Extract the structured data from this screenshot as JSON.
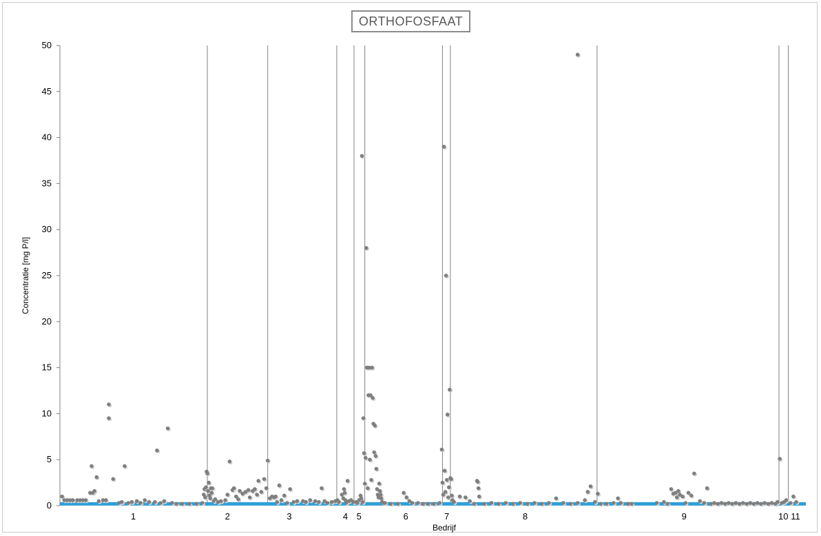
{
  "chart_data": {
    "type": "scatter",
    "title": "ORTHOFOSFAAT",
    "xlabel": "Bedrijf",
    "ylabel": "Concentratie [mg P/l]",
    "ylim": [
      0,
      50
    ],
    "yticks": [
      0,
      5,
      10,
      15,
      20,
      25,
      30,
      35,
      40,
      45,
      50
    ],
    "xlim": [
      0,
      1000
    ],
    "grid": "vertical separators between companies",
    "legend": "none",
    "colors": {
      "points": "#7f7f7f",
      "reference_line": "#2e9fd8",
      "separators": "#808080",
      "frame": "#c9c9c9"
    },
    "reference_line": {
      "y": 0.2
    },
    "separators": [
      205,
      289,
      385,
      409,
      424,
      532,
      543,
      747,
      1000,
      1013
    ],
    "categories": [
      {
        "label": "1",
        "x": 102
      },
      {
        "label": "2",
        "x": 233
      },
      {
        "label": "3",
        "x": 319
      },
      {
        "label": "4",
        "x": 397
      },
      {
        "label": "5",
        "x": 416
      },
      {
        "label": "6",
        "x": 481
      },
      {
        "label": "7",
        "x": 538
      },
      {
        "label": "8",
        "x": 647
      },
      {
        "label": "9",
        "x": 868
      },
      {
        "label": "10",
        "x": 1006
      },
      {
        "label": "11",
        "x": 1023
      }
    ],
    "series": [
      {
        "points": [
          [
            3,
            1
          ],
          [
            6,
            0.6
          ],
          [
            10,
            0.6
          ],
          [
            14,
            0.6
          ],
          [
            18,
            0.6
          ],
          [
            24,
            0.6
          ],
          [
            28,
            0.6
          ],
          [
            32,
            0.6
          ],
          [
            36,
            0.6
          ],
          [
            42,
            1.4
          ],
          [
            44,
            4.3
          ],
          [
            46,
            1.4
          ],
          [
            48,
            1.6
          ],
          [
            51,
            3.1
          ],
          [
            54,
            0.5
          ],
          [
            60,
            0.6
          ],
          [
            64,
            0.6
          ],
          [
            68,
            11
          ],
          [
            68,
            9.5
          ],
          [
            74,
            2.9
          ],
          [
            82,
            0.3
          ],
          [
            86,
            0.4
          ],
          [
            90,
            4.3
          ],
          [
            95,
            0.3
          ],
          [
            100,
            0.4
          ],
          [
            107,
            0.5
          ],
          [
            112,
            0.3
          ],
          [
            118,
            0.6
          ],
          [
            124,
            0.4
          ],
          [
            132,
            0.4
          ],
          [
            135,
            6
          ],
          [
            140,
            0.3
          ],
          [
            145,
            0.5
          ],
          [
            150,
            8.4
          ],
          [
            156,
            0.3
          ],
          [
            162,
            0.2
          ],
          [
            170,
            0.2
          ],
          [
            180,
            0.2
          ],
          [
            190,
            0.2
          ],
          [
            198,
            0.3
          ],
          [
            200,
            1.2
          ],
          [
            201,
            1.8
          ],
          [
            202,
            0.9
          ],
          [
            203,
            2
          ],
          [
            204,
            3.7
          ],
          [
            205,
            3.5
          ],
          [
            206,
            1.6
          ],
          [
            207,
            2.5
          ],
          [
            208,
            1.1
          ],
          [
            209,
            0.8
          ],
          [
            210,
            1.9
          ],
          [
            211,
            1.4
          ],
          [
            212,
            1.9
          ],
          [
            214,
            0.5
          ],
          [
            216,
            0.7
          ],
          [
            220,
            0.4
          ],
          [
            224,
            0.5
          ],
          [
            230,
            0.6
          ],
          [
            233,
            1.2
          ],
          [
            236,
            4.8
          ],
          [
            240,
            1.7
          ],
          [
            242,
            1.9
          ],
          [
            245,
            1
          ],
          [
            248,
            0.7
          ],
          [
            250,
            1.6
          ],
          [
            254,
            1.3
          ],
          [
            258,
            1.5
          ],
          [
            262,
            1.7
          ],
          [
            264,
            0.9
          ],
          [
            268,
            1.6
          ],
          [
            271,
            1.8
          ],
          [
            274,
            1.2
          ],
          [
            276,
            2.7
          ],
          [
            280,
            1.5
          ],
          [
            284,
            2.9
          ],
          [
            287,
            1.9
          ],
          [
            289,
            4.9
          ],
          [
            292,
            0.8
          ],
          [
            295,
            1
          ],
          [
            298,
            0.9
          ],
          [
            300,
            1
          ],
          [
            302,
            0.4
          ],
          [
            305,
            2.2
          ],
          [
            308,
            0.6
          ],
          [
            312,
            1.1
          ],
          [
            316,
            0.3
          ],
          [
            320,
            1.8
          ],
          [
            325,
            0.4
          ],
          [
            330,
            0.5
          ],
          [
            338,
            0.5
          ],
          [
            342,
            0.4
          ],
          [
            348,
            0.6
          ],
          [
            355,
            0.5
          ],
          [
            360,
            0.4
          ],
          [
            364,
            1.9
          ],
          [
            368,
            0.5
          ],
          [
            372,
            0.3
          ],
          [
            378,
            0.4
          ],
          [
            383,
            0.5
          ],
          [
            386,
            0.6
          ],
          [
            388,
            0.4
          ],
          [
            392,
            1.2
          ],
          [
            394,
            0.8
          ],
          [
            395,
            1.8
          ],
          [
            396,
            1.4
          ],
          [
            397,
            0.6
          ],
          [
            398,
            0.3
          ],
          [
            400,
            2.7
          ],
          [
            402,
            0.5
          ],
          [
            405,
            0.6
          ],
          [
            408,
            0.4
          ],
          [
            412,
            0.4
          ],
          [
            414,
            0.3
          ],
          [
            416,
            0.6
          ],
          [
            418,
            1.1
          ],
          [
            419,
            0.8
          ],
          [
            420,
            38
          ],
          [
            421,
            0.4
          ],
          [
            422,
            9.5
          ],
          [
            423,
            5.7
          ],
          [
            424,
            2.4
          ],
          [
            425,
            5.2
          ],
          [
            426,
            28
          ],
          [
            427,
            15
          ],
          [
            428,
            1.9
          ],
          [
            429,
            12
          ],
          [
            430,
            15
          ],
          [
            431,
            5
          ],
          [
            432,
            12
          ],
          [
            433,
            2.8
          ],
          [
            434,
            15
          ],
          [
            435,
            11.7
          ],
          [
            436,
            8.9
          ],
          [
            437,
            5.8
          ],
          [
            438,
            8.7
          ],
          [
            439,
            5.4
          ],
          [
            440,
            4
          ],
          [
            441,
            1.8
          ],
          [
            442,
            1.2
          ],
          [
            443,
            0.9
          ],
          [
            444,
            2.4
          ],
          [
            445,
            1.6
          ],
          [
            446,
            1.2
          ],
          [
            447,
            0.8
          ],
          [
            448,
            0.4
          ],
          [
            450,
            0.3
          ],
          [
            452,
            0.3
          ],
          [
            460,
            0.2
          ],
          [
            470,
            0.2
          ],
          [
            478,
            1.4
          ],
          [
            482,
            0.9
          ],
          [
            486,
            0.5
          ],
          [
            490,
            0.3
          ],
          [
            498,
            0.3
          ],
          [
            505,
            0.2
          ],
          [
            512,
            0.2
          ],
          [
            520,
            0.2
          ],
          [
            528,
            0.3
          ],
          [
            531,
            6.1
          ],
          [
            532,
            2.5
          ],
          [
            533,
            1.2
          ],
          [
            534,
            39
          ],
          [
            535,
            3.8
          ],
          [
            536,
            1.5
          ],
          [
            537,
            25
          ],
          [
            538,
            2.8
          ],
          [
            539,
            9.9
          ],
          [
            540,
            0.9
          ],
          [
            541,
            2
          ],
          [
            542,
            12.6
          ],
          [
            543,
            3
          ],
          [
            544,
            2.9
          ],
          [
            545,
            1.1
          ],
          [
            546,
            0.6
          ],
          [
            548,
            0.4
          ],
          [
            556,
            1
          ],
          [
            564,
            0.9
          ],
          [
            570,
            0.5
          ],
          [
            576,
            0.2
          ],
          [
            580,
            2.7
          ],
          [
            581,
            2.6
          ],
          [
            582,
            1.9
          ],
          [
            583,
            1
          ],
          [
            590,
            0.2
          ],
          [
            600,
            0.3
          ],
          [
            610,
            0.2
          ],
          [
            620,
            0.3
          ],
          [
            630,
            0.2
          ],
          [
            640,
            0.3
          ],
          [
            650,
            0.2
          ],
          [
            660,
            0.3
          ],
          [
            670,
            0.2
          ],
          [
            680,
            0.3
          ],
          [
            690,
            0.8
          ],
          [
            700,
            0.3
          ],
          [
            710,
            0.2
          ],
          [
            720,
            0.3
          ],
          [
            730,
            0.6
          ],
          [
            734,
            1.5
          ],
          [
            738,
            2.1
          ],
          [
            744,
            0.4
          ],
          [
            748,
            1.3
          ],
          [
            752,
            0.2
          ],
          [
            760,
            0.2
          ],
          [
            770,
            0.3
          ],
          [
            776,
            0.8
          ],
          [
            780,
            0.3
          ],
          [
            790,
            0.2
          ],
          [
            795,
            0.2
          ],
          [
            720,
            49
          ],
          [
            830,
            0.3
          ],
          [
            840,
            0.4
          ],
          [
            845,
            0.2
          ],
          [
            850,
            1.8
          ],
          [
            853,
            1.3
          ],
          [
            856,
            1.4
          ],
          [
            858,
            0.9
          ],
          [
            860,
            1.6
          ],
          [
            862,
            1.2
          ],
          [
            866,
            1
          ],
          [
            870,
            0.3
          ],
          [
            874,
            1.4
          ],
          [
            878,
            1.1
          ],
          [
            882,
            3.5
          ],
          [
            890,
            0.5
          ],
          [
            896,
            0.3
          ],
          [
            900,
            1.9
          ],
          [
            905,
            0.2
          ],
          [
            910,
            0.3
          ],
          [
            915,
            0.2
          ],
          [
            920,
            0.3
          ],
          [
            925,
            0.2
          ],
          [
            930,
            0.3
          ],
          [
            935,
            0.2
          ],
          [
            940,
            0.3
          ],
          [
            945,
            0.2
          ],
          [
            950,
            0.3
          ],
          [
            955,
            0.2
          ],
          [
            960,
            0.3
          ],
          [
            965,
            0.2
          ],
          [
            970,
            0.3
          ],
          [
            975,
            0.2
          ],
          [
            980,
            0.3
          ],
          [
            985,
            0.2
          ],
          [
            990,
            0.3
          ],
          [
            995,
            0.2
          ],
          [
            998,
            0.4
          ],
          [
            1001,
            5.1
          ],
          [
            1004,
            0.3
          ],
          [
            1007,
            0.4
          ],
          [
            1010,
            0.6
          ],
          [
            1016,
            0.3
          ],
          [
            1020,
            1
          ],
          [
            1024,
            0.4
          ]
        ]
      }
    ]
  }
}
